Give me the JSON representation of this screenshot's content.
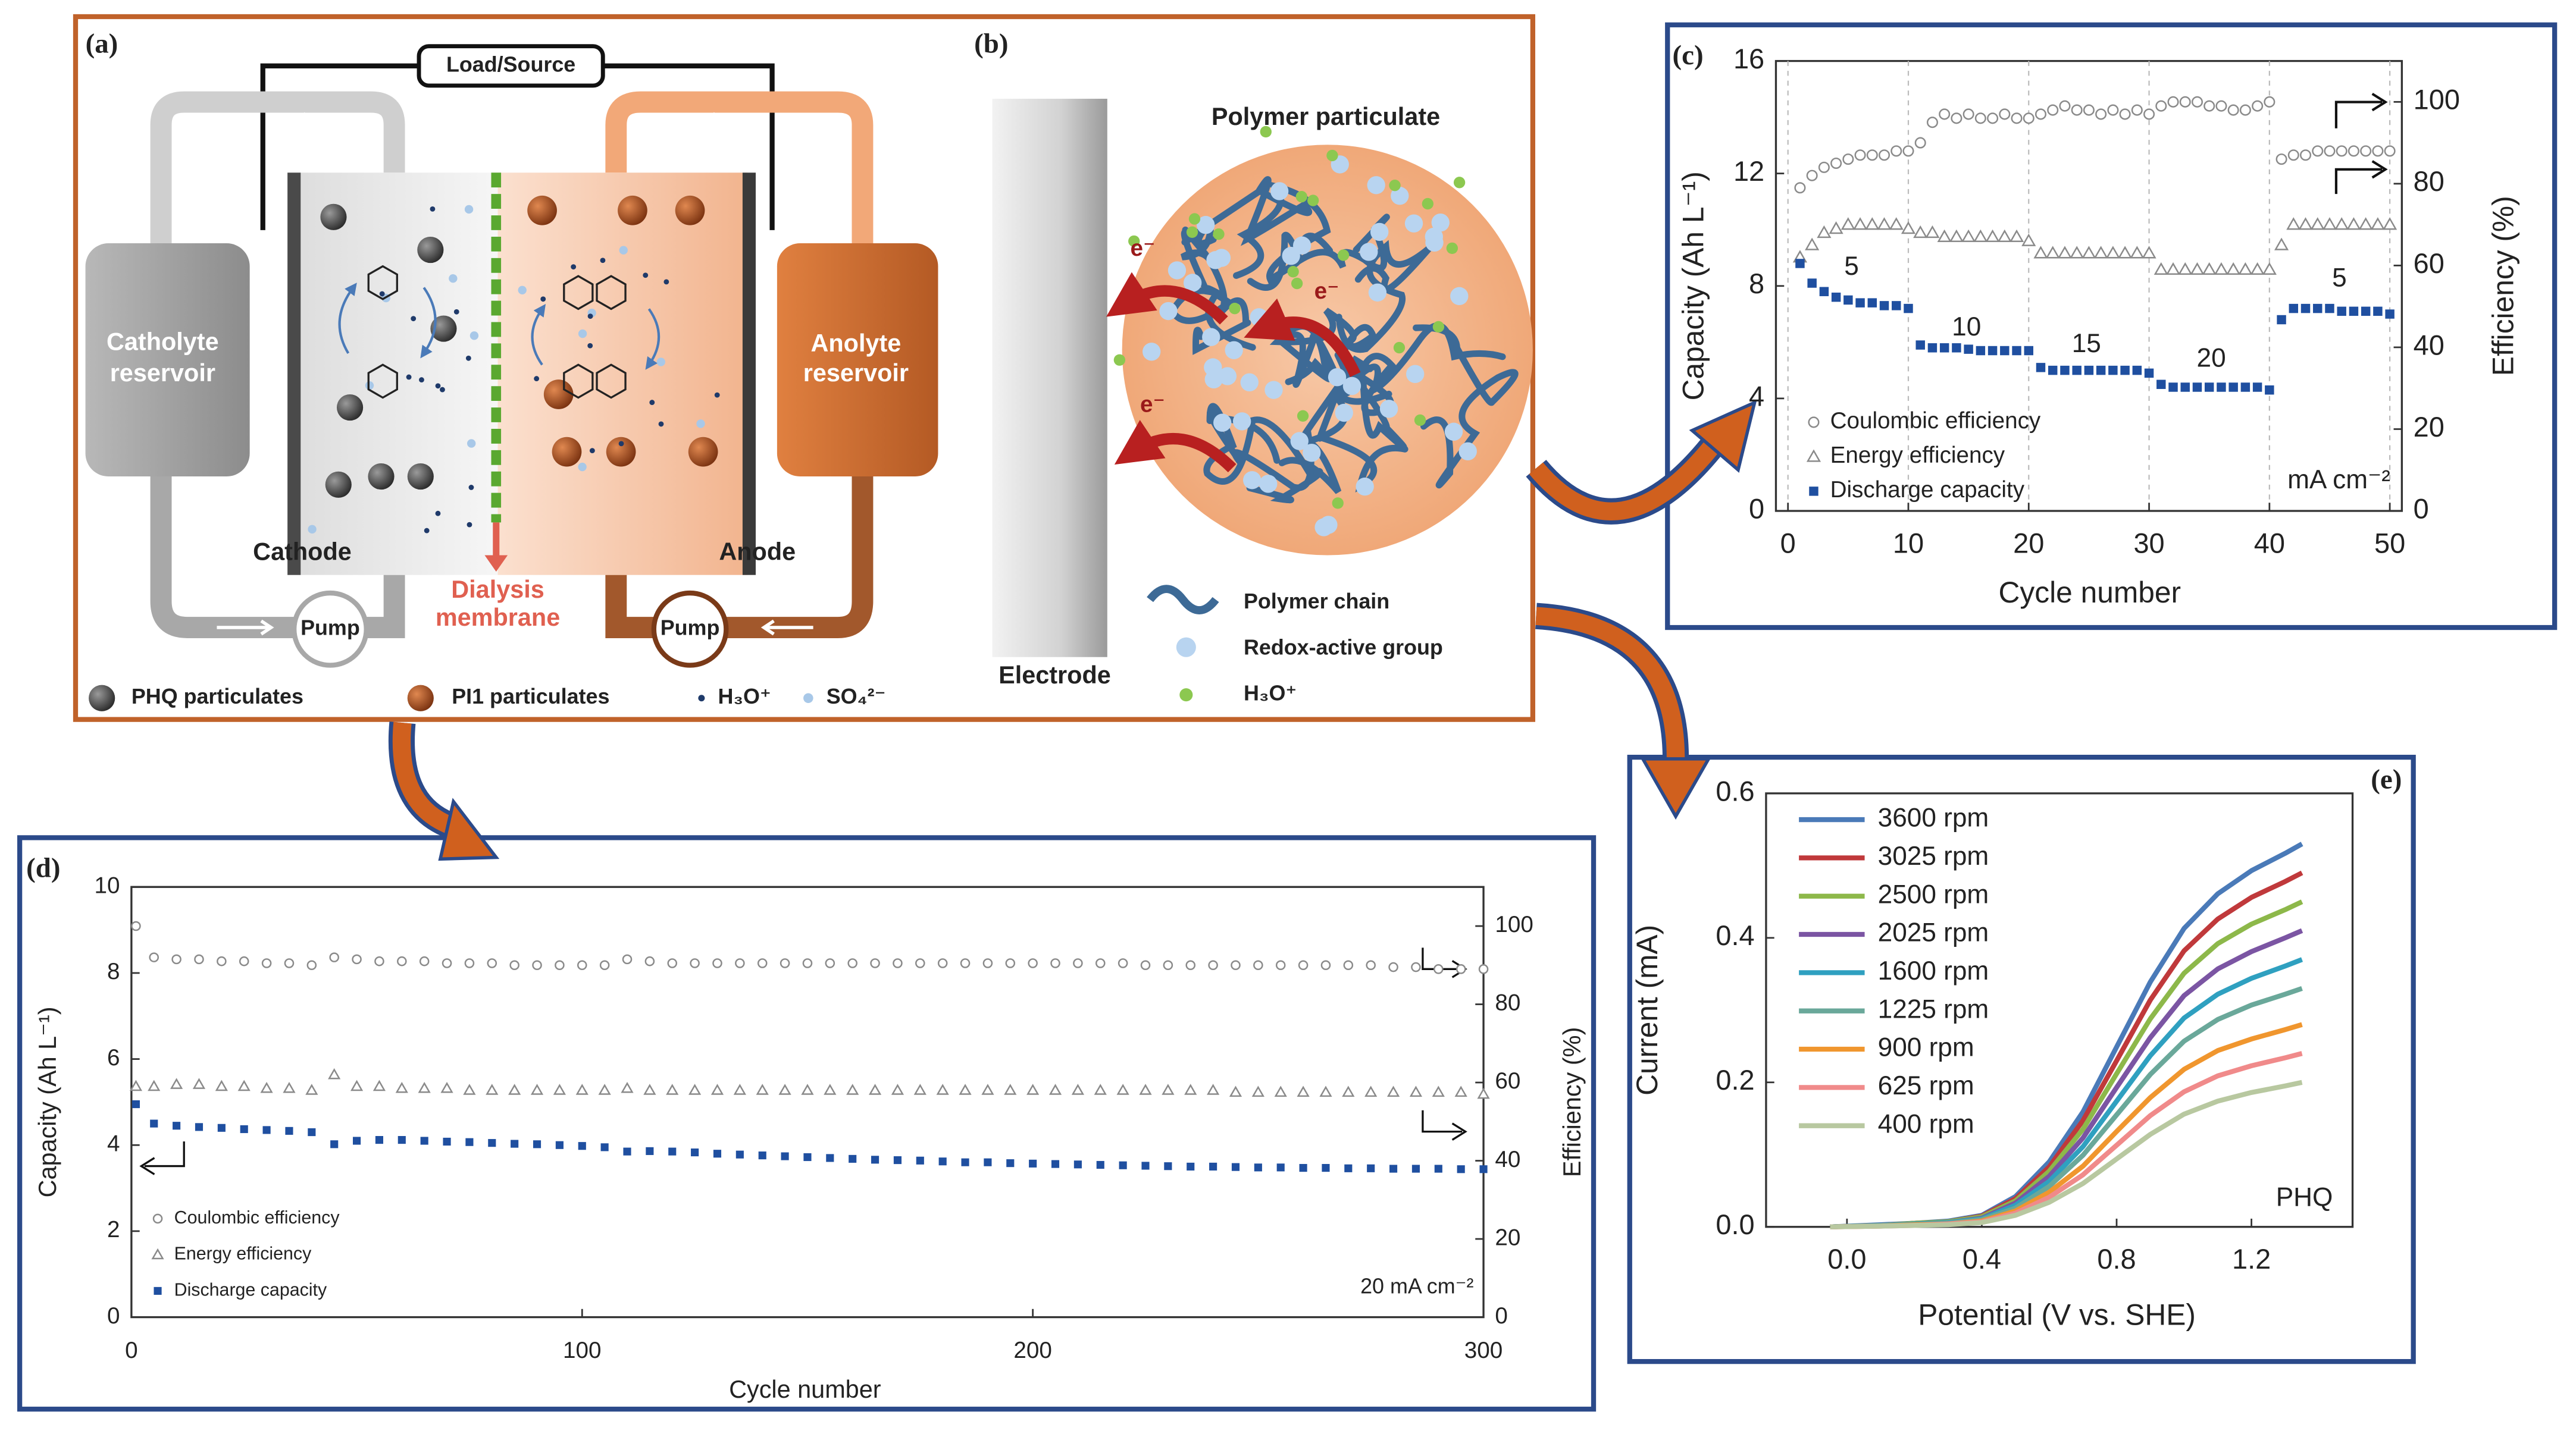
{
  "panel_a": {
    "panel_label": "(a)",
    "load": "Load/Source",
    "catholyte_reservoir": [
      "Catholyte",
      "reservoir"
    ],
    "anolyte_reservoir": [
      "Anolyte",
      "reservoir"
    ],
    "cathode": "Cathode",
    "anode": "Anode",
    "membrane": [
      "Dialysis",
      "membrane"
    ],
    "pump_left": "Pump",
    "pump_right": "Pump",
    "legend": [
      "PHQ particulates",
      "PI1 particulates",
      "H₃O⁺",
      "SO₄²⁻"
    ]
  },
  "panel_b": {
    "panel_label": "(b)",
    "title": "Polymer particulate",
    "electrode": "Electrode",
    "electrons": [
      "e⁻",
      "e⁻",
      "e⁻"
    ],
    "legend": [
      "Polymer chain",
      "Redox-active group",
      "H₃O⁺"
    ]
  },
  "chart_data": [
    {
      "type": "scatter",
      "panel_label": "(c)",
      "xlabel": "Cycle number",
      "ylabel": "Capacity (Ah L⁻¹)",
      "y2label": "Efficiency (%)",
      "xlim": [
        -1,
        51
      ],
      "xticks": [
        0,
        10,
        20,
        30,
        40,
        50
      ],
      "ylim": [
        0,
        16
      ],
      "yticks": [
        0,
        4,
        8,
        12,
        16
      ],
      "y2lim": [
        0,
        110
      ],
      "y2ticks": [
        0,
        20,
        40,
        60,
        80,
        100
      ],
      "grid": "x",
      "annotations": [
        "5",
        "10",
        "15",
        "20",
        "5",
        "mA cm⁻²"
      ],
      "x": [
        1,
        2,
        3,
        4,
        5,
        6,
        7,
        8,
        9,
        10,
        11,
        12,
        13,
        14,
        15,
        16,
        17,
        18,
        19,
        20,
        21,
        22,
        23,
        24,
        25,
        26,
        27,
        28,
        29,
        30,
        31,
        32,
        33,
        34,
        35,
        36,
        37,
        38,
        39,
        40,
        41,
        42,
        43,
        44,
        45,
        46,
        47,
        48,
        49,
        50
      ],
      "series": [
        {
          "name": "Coulombic efficiency",
          "marker": "circle",
          "color": "#8a8a8a",
          "axis": "y2",
          "values": [
            79,
            82,
            84,
            85,
            86,
            87,
            87,
            87,
            88,
            88,
            90,
            95,
            97,
            96,
            97,
            96,
            96,
            97,
            96,
            96,
            97,
            98,
            99,
            98,
            98,
            97,
            98,
            97,
            98,
            97,
            99,
            100,
            100,
            100,
            99,
            99,
            98,
            98,
            99,
            100,
            86,
            87,
            87,
            88,
            88,
            88,
            88,
            88,
            88,
            88
          ]
        },
        {
          "name": "Energy efficiency",
          "marker": "triangle",
          "color": "#8a8a8a",
          "axis": "y2",
          "values": [
            62,
            65,
            68,
            69,
            70,
            70,
            70,
            70,
            70,
            69,
            68,
            68,
            67,
            67,
            67,
            67,
            67,
            67,
            67,
            66,
            63,
            63,
            63,
            63,
            63,
            63,
            63,
            63,
            63,
            63,
            59,
            59,
            59,
            59,
            59,
            59,
            59,
            59,
            59,
            59,
            65,
            70,
            70,
            70,
            70,
            70,
            70,
            70,
            70,
            70
          ]
        },
        {
          "name": "Discharge capacity",
          "marker": "square",
          "color": "#1f4fa0",
          "values": [
            8.8,
            8.1,
            7.8,
            7.6,
            7.5,
            7.4,
            7.4,
            7.3,
            7.3,
            7.2,
            5.9,
            5.8,
            5.8,
            5.8,
            5.75,
            5.7,
            5.7,
            5.7,
            5.7,
            5.7,
            5.1,
            5.0,
            5.0,
            5.0,
            5.0,
            5.0,
            5.0,
            5.0,
            5.0,
            4.9,
            4.5,
            4.4,
            4.4,
            4.4,
            4.4,
            4.4,
            4.4,
            4.4,
            4.4,
            4.3,
            6.8,
            7.2,
            7.2,
            7.2,
            7.2,
            7.1,
            7.1,
            7.1,
            7.1,
            7.0
          ]
        }
      ]
    },
    {
      "type": "scatter",
      "panel_label": "(d)",
      "xlabel": "Cycle number",
      "ylabel": "Capacity (Ah L⁻¹)",
      "y2label": "Efficiency (%)",
      "xlim": [
        0,
        300
      ],
      "xticks": [
        0,
        100,
        200,
        300
      ],
      "ylim": [
        0,
        10
      ],
      "yticks": [
        0,
        2,
        4,
        6,
        8,
        10
      ],
      "y2lim": [
        0,
        110
      ],
      "y2ticks": [
        0,
        20,
        40,
        60,
        80,
        100
      ],
      "annotations": [
        "20 mA cm⁻²"
      ],
      "x": [
        1,
        5,
        10,
        15,
        20,
        25,
        30,
        35,
        40,
        45,
        50,
        55,
        60,
        65,
        70,
        75,
        80,
        85,
        90,
        95,
        100,
        105,
        110,
        115,
        120,
        125,
        130,
        135,
        140,
        145,
        150,
        155,
        160,
        165,
        170,
        175,
        180,
        185,
        190,
        195,
        200,
        205,
        210,
        215,
        220,
        225,
        230,
        235,
        240,
        245,
        250,
        255,
        260,
        265,
        270,
        275,
        280,
        285,
        290,
        295,
        300
      ],
      "series": [
        {
          "name": "Coulombic efficiency",
          "marker": "circle",
          "color": "#8a8a8a",
          "axis": "y2",
          "values": [
            100,
            92,
            91.5,
            91.5,
            91,
            91,
            90.5,
            90.5,
            90,
            92,
            91.5,
            91,
            91,
            91,
            90.5,
            90.5,
            90.5,
            90,
            90,
            90,
            90,
            90,
            91.5,
            91,
            90.5,
            90.5,
            90.5,
            90.5,
            90.5,
            90.5,
            90.5,
            90.5,
            90.5,
            90.5,
            90.5,
            90.5,
            90.5,
            90.5,
            90.5,
            90.5,
            90.5,
            90.5,
            90.5,
            90.5,
            90.5,
            90,
            90,
            90,
            90,
            90,
            90,
            90,
            90,
            90,
            90,
            90,
            89.5,
            89.5,
            89,
            89,
            89
          ]
        },
        {
          "name": "Energy efficiency",
          "marker": "triangle",
          "color": "#8a8a8a",
          "axis": "y2",
          "values": [
            59,
            59,
            59.5,
            59.5,
            59,
            59,
            58.5,
            58.5,
            58,
            62,
            59,
            59,
            58.5,
            58.5,
            58.5,
            58,
            58,
            58,
            58,
            58,
            58,
            58,
            58.5,
            58,
            58,
            58,
            58,
            58,
            58,
            58,
            58,
            58,
            58,
            58,
            58,
            58,
            58,
            58,
            58,
            58,
            58,
            58,
            58,
            58,
            58,
            58,
            58,
            58,
            58,
            57.5,
            57.5,
            57.5,
            57.5,
            57.5,
            57.5,
            57.5,
            57.5,
            57.5,
            57.5,
            57.5,
            57
          ]
        },
        {
          "name": "Discharge capacity",
          "marker": "square",
          "color": "#1f4fa0",
          "values": [
            4.95,
            4.5,
            4.45,
            4.42,
            4.4,
            4.37,
            4.35,
            4.33,
            4.3,
            4.02,
            4.1,
            4.12,
            4.12,
            4.1,
            4.08,
            4.07,
            4.05,
            4.03,
            4.02,
            4.0,
            3.98,
            3.95,
            3.85,
            3.86,
            3.85,
            3.83,
            3.8,
            3.78,
            3.76,
            3.74,
            3.72,
            3.7,
            3.68,
            3.66,
            3.65,
            3.64,
            3.62,
            3.6,
            3.6,
            3.58,
            3.57,
            3.56,
            3.55,
            3.54,
            3.53,
            3.52,
            3.51,
            3.5,
            3.5,
            3.49,
            3.48,
            3.48,
            3.47,
            3.47,
            3.46,
            3.46,
            3.45,
            3.45,
            3.45,
            3.44,
            3.44
          ]
        }
      ]
    },
    {
      "type": "line",
      "panel_label": "(e)",
      "xlabel": "Potential (V vs. SHE)",
      "ylabel": "Current (mA)",
      "xlim": [
        -0.24,
        1.5
      ],
      "xticks": [
        {
          "value": 0,
          "label": "0.0"
        },
        0.4,
        0.8,
        1.2
      ],
      "ylim": [
        0,
        0.6
      ],
      "yticks": [
        {
          "value": 0,
          "label": "0.0"
        },
        0.2,
        0.4,
        0.6
      ],
      "annotations": [
        "PHQ"
      ],
      "x": [
        -0.05,
        0.1,
        0.2,
        0.3,
        0.4,
        0.5,
        0.6,
        0.7,
        0.8,
        0.9,
        1.0,
        1.1,
        1.2,
        1.3,
        1.35
      ],
      "series": [
        {
          "name": "3600 rpm",
          "color": "#4a7ab8",
          "values": [
            0,
            0.003,
            0.005,
            0.008,
            0.016,
            0.042,
            0.09,
            0.159,
            0.249,
            0.339,
            0.413,
            0.461,
            0.493,
            0.517,
            0.53
          ]
        },
        {
          "name": "3025 rpm",
          "color": "#c0393b",
          "values": [
            0,
            0.002,
            0.005,
            0.007,
            0.015,
            0.039,
            0.083,
            0.147,
            0.23,
            0.314,
            0.382,
            0.426,
            0.456,
            0.478,
            0.49
          ]
        },
        {
          "name": "2500 rpm",
          "color": "#8db84a",
          "values": [
            0,
            0.002,
            0.005,
            0.007,
            0.014,
            0.036,
            0.077,
            0.135,
            0.212,
            0.288,
            0.351,
            0.392,
            0.419,
            0.439,
            0.45
          ]
        },
        {
          "name": "2025 rpm",
          "color": "#7b55a3",
          "values": [
            0,
            0.002,
            0.004,
            0.006,
            0.012,
            0.033,
            0.07,
            0.123,
            0.193,
            0.262,
            0.32,
            0.357,
            0.381,
            0.4,
            0.41
          ]
        },
        {
          "name": "1600 rpm",
          "color": "#2fa0c0",
          "values": [
            0,
            0.002,
            0.004,
            0.006,
            0.011,
            0.03,
            0.063,
            0.111,
            0.174,
            0.237,
            0.289,
            0.322,
            0.344,
            0.361,
            0.37
          ]
        },
        {
          "name": "1225 rpm",
          "color": "#6aa89a",
          "values": [
            0,
            0.002,
            0.003,
            0.005,
            0.01,
            0.026,
            0.056,
            0.099,
            0.155,
            0.211,
            0.257,
            0.287,
            0.307,
            0.322,
            0.33
          ]
        },
        {
          "name": "900 rpm",
          "color": "#f0962e",
          "values": [
            0,
            0.001,
            0.003,
            0.004,
            0.008,
            0.022,
            0.048,
            0.084,
            0.132,
            0.179,
            0.218,
            0.244,
            0.26,
            0.273,
            0.28
          ]
        },
        {
          "name": "625 rpm",
          "color": "#f08a8a",
          "values": [
            0,
            0.001,
            0.002,
            0.004,
            0.007,
            0.019,
            0.041,
            0.072,
            0.113,
            0.154,
            0.187,
            0.209,
            0.223,
            0.234,
            0.24
          ]
        },
        {
          "name": "400 rpm",
          "color": "#b8c8a0",
          "values": [
            0,
            0.001,
            0.002,
            0.003,
            0.006,
            0.016,
            0.034,
            0.06,
            0.094,
            0.128,
            0.156,
            0.174,
            0.186,
            0.195,
            0.2
          ]
        }
      ]
    }
  ]
}
